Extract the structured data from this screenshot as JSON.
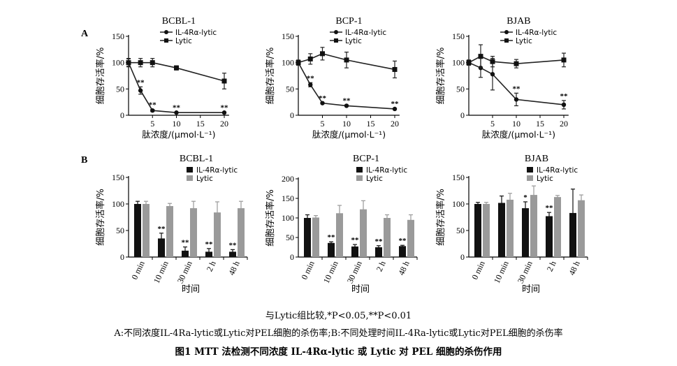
{
  "panel_labels": [
    "A",
    "B"
  ],
  "chart_data": [
    {
      "type": "line",
      "panel": "A",
      "title": "BCBL-1",
      "xlabel": "肽浓度/(μmol·L⁻¹)",
      "ylabel": "细胞存活率/%",
      "xticks": [
        5,
        10,
        15,
        20
      ],
      "yticks": [
        0,
        50,
        100,
        150
      ],
      "ylim": [
        0,
        150
      ],
      "xlim": [
        0,
        21
      ],
      "legend_position": "top-right",
      "series": [
        {
          "name": "IL-4Rα-lytic",
          "marker": "circle",
          "x": [
            0,
            2.5,
            5,
            10,
            20
          ],
          "y": [
            100,
            47,
            9,
            5,
            5
          ],
          "err": [
            7,
            7,
            2,
            1,
            1
          ],
          "labels": [
            "",
            "**",
            "**",
            "**",
            "**"
          ]
        },
        {
          "name": "Lytic",
          "marker": "square",
          "x": [
            0,
            2.5,
            5,
            10,
            20
          ],
          "y": [
            100,
            100,
            100,
            90,
            65
          ],
          "err": [
            8,
            8,
            8,
            4,
            15
          ],
          "labels": [
            "",
            "",
            "",
            "",
            ""
          ]
        }
      ]
    },
    {
      "type": "line",
      "panel": "A",
      "title": "BCP-1",
      "xlabel": "肽浓度/(μmol·L⁻¹)",
      "ylabel": "细胞存活率/%",
      "xticks": [
        5,
        10,
        15,
        20
      ],
      "yticks": [
        0,
        50,
        100,
        150
      ],
      "ylim": [
        0,
        150
      ],
      "xlim": [
        0,
        21
      ],
      "legend_position": "top-right",
      "series": [
        {
          "name": "IL-4Rα-lytic",
          "marker": "circle",
          "x": [
            0,
            2.5,
            5,
            10,
            20
          ],
          "y": [
            100,
            58,
            23,
            18,
            12
          ],
          "err": [
            4,
            4,
            1,
            1,
            1
          ],
          "labels": [
            "",
            "**",
            "**",
            "**",
            "**"
          ]
        },
        {
          "name": "Lytic",
          "marker": "square",
          "x": [
            0,
            2.5,
            5,
            10,
            20
          ],
          "y": [
            100,
            107,
            117,
            105,
            87
          ],
          "err": [
            5,
            10,
            12,
            15,
            16
          ],
          "labels": [
            "",
            "",
            "",
            "",
            ""
          ]
        }
      ]
    },
    {
      "type": "line",
      "panel": "A",
      "title": "BJAB",
      "xlabel": "肽浓度/(μmol·L⁻¹)",
      "ylabel": "细胞存活率/%",
      "xticks": [
        5,
        10,
        15,
        20
      ],
      "yticks": [
        0,
        50,
        100,
        150
      ],
      "ylim": [
        0,
        150
      ],
      "xlim": [
        0,
        21
      ],
      "legend_position": "top-right",
      "series": [
        {
          "name": "IL-4Rα-lytic",
          "marker": "circle",
          "x": [
            0,
            2.5,
            5,
            10,
            20
          ],
          "y": [
            100,
            90,
            78,
            30,
            20
          ],
          "err": [
            5,
            18,
            30,
            12,
            8
          ],
          "labels": [
            "",
            "",
            "",
            "**",
            "**"
          ]
        },
        {
          "name": "Lytic",
          "marker": "square",
          "x": [
            0,
            2.5,
            5,
            10,
            20
          ],
          "y": [
            100,
            112,
            102,
            98,
            105
          ],
          "err": [
            5,
            22,
            10,
            8,
            13
          ],
          "labels": [
            "",
            "",
            "",
            "",
            ""
          ]
        }
      ]
    },
    {
      "type": "bar",
      "panel": "B",
      "title": "BCBL-1",
      "xlabel": "时间",
      "ylabel": "细胞存活率/%",
      "categories": [
        "0 min",
        "10 min",
        "30 min",
        "2 h",
        "48 h"
      ],
      "yticks": [
        0,
        50,
        100,
        150
      ],
      "ylim": [
        0,
        150
      ],
      "legend_position": "top-right",
      "series": [
        {
          "name": "IL-4Rα-lytic",
          "color": "#111111",
          "values": [
            100,
            35,
            12,
            10,
            10
          ],
          "err": [
            5,
            10,
            7,
            6,
            4
          ],
          "labels": [
            "",
            "**",
            "**",
            "**",
            "**"
          ]
        },
        {
          "name": "Lytic",
          "color": "#9a9a9a",
          "values": [
            100,
            96,
            92,
            84,
            92
          ],
          "err": [
            5,
            5,
            13,
            20,
            13
          ],
          "labels": [
            "",
            "",
            "",
            "",
            ""
          ]
        }
      ]
    },
    {
      "type": "bar",
      "panel": "B",
      "title": "BCP-1",
      "xlabel": "时间",
      "ylabel": "细胞存活率/%",
      "categories": [
        "0 min",
        "10 min",
        "30 min",
        "2 h",
        "48 h"
      ],
      "yticks": [
        0,
        50,
        100,
        150,
        200
      ],
      "ylim": [
        0,
        200
      ],
      "legend_position": "top-right",
      "series": [
        {
          "name": "IL-4Rα-lytic",
          "color": "#111111",
          "values": [
            100,
            36,
            27,
            25,
            28
          ],
          "err": [
            8,
            3,
            5,
            4,
            2
          ],
          "labels": [
            "",
            "**",
            "**",
            "**",
            "**"
          ]
        },
        {
          "name": "Lytic",
          "color": "#9a9a9a",
          "values": [
            101,
            112,
            122,
            100,
            95
          ],
          "err": [
            5,
            20,
            22,
            8,
            13
          ],
          "labels": [
            "",
            "",
            "",
            "",
            ""
          ]
        }
      ]
    },
    {
      "type": "bar",
      "panel": "B",
      "title": "BJAB",
      "xlabel": "时间",
      "ylabel": "细胞存活率/%",
      "categories": [
        "0 min",
        "10 min",
        "30 min",
        "2 h",
        "48 h"
      ],
      "yticks": [
        0,
        50,
        100,
        150
      ],
      "ylim": [
        0,
        150
      ],
      "legend_position": "top-right",
      "series": [
        {
          "name": "IL-4Rα-lytic",
          "color": "#111111",
          "values": [
            100,
            102,
            92,
            77,
            83
          ],
          "err": [
            3,
            13,
            12,
            7,
            45
          ],
          "labels": [
            "",
            "",
            "*",
            "**",
            ""
          ]
        },
        {
          "name": "Lytic",
          "color": "#9a9a9a",
          "values": [
            100,
            108,
            117,
            113,
            107
          ],
          "err": [
            3,
            12,
            17,
            3,
            10
          ],
          "labels": [
            "",
            "",
            "",
            "",
            ""
          ]
        }
      ]
    }
  ],
  "significance_note": "与Lytic组比较,*P<0.05,**P<0.01",
  "caption_line": "A:不同浓度IL-4Ra-lytic或Lytic对PEL细胞的杀伤率;B:不同处理时间IL-4Ra-lytic或Lytic对PEL细胞的杀伤率",
  "figure_title": "图1  MTT 法检测不同浓度 IL-4Rα-lytic 或 Lytic 对 PEL 细胞的杀伤作用"
}
